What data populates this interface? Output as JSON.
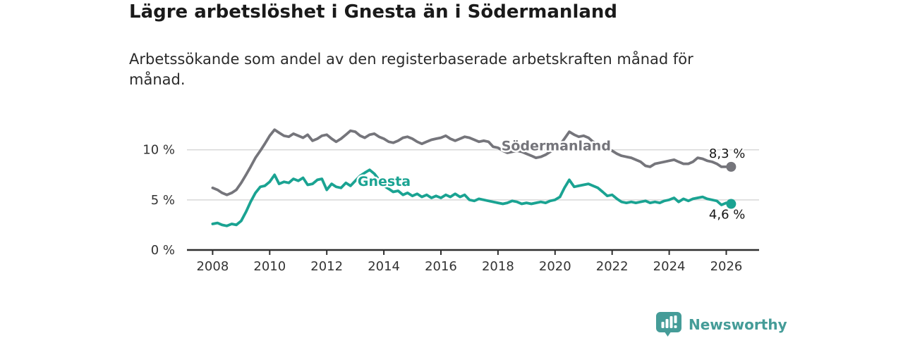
{
  "header": {
    "title": "Lägre arbetslöshet i Gnesta än i Södermanland",
    "subtitle": "Arbetssökande som andel av den registerbaserade arbetskraften månad för månad.",
    "subtitle_lines": [
      "Arbetssökande som andel av den registerbaserade arbetskraften månad för",
      "månad."
    ]
  },
  "footer": {
    "brand_name": "Newsworthy",
    "logo_icon": "bar-chart-speech-bubble-icon"
  },
  "colors": {
    "gnesta": "#1aa392",
    "sodermanland": "#75757b",
    "grid": "#d8d8d8",
    "axis": "#2e2e2e",
    "tick_text": "#333333",
    "end_label_text": "#141414",
    "brand": "#459c98",
    "background": "#ffffff"
  },
  "chart_data": {
    "type": "line",
    "title": "Lägre arbetslöshet i Gnesta än i Södermanland",
    "xlabel": "",
    "ylabel": "",
    "x_unit": "year (monthly series)",
    "grid": "horizontal",
    "legend_position": "inline-series-labels",
    "xlim": [
      2007.1,
      2027.15
    ],
    "ylim": [
      0,
      13
    ],
    "x_ticks": [
      {
        "value": 2008,
        "label": "2008"
      },
      {
        "value": 2010,
        "label": "2010"
      },
      {
        "value": 2012,
        "label": "2012"
      },
      {
        "value": 2014,
        "label": "2014"
      },
      {
        "value": 2016,
        "label": "2016"
      },
      {
        "value": 2018,
        "label": "2018"
      },
      {
        "value": 2020,
        "label": "2020"
      },
      {
        "value": 2022,
        "label": "2022"
      },
      {
        "value": 2024,
        "label": "2024"
      },
      {
        "value": 2026,
        "label": "2026"
      }
    ],
    "y_ticks": [
      {
        "value": 0,
        "label": "0 %"
      },
      {
        "value": 5,
        "label": "5 %"
      },
      {
        "value": 10,
        "label": "10 %"
      }
    ],
    "grid_values": [
      5,
      10
    ],
    "series": [
      {
        "name": "Södermanland",
        "color": "#75757b",
        "end_label": "8,3 %",
        "end_value": 8.3,
        "end_label_position": "above",
        "label_anchor": {
          "x": 2018.12,
          "y": 9.95
        },
        "points": [
          [
            2008.0,
            6.2
          ],
          [
            2008.17,
            6.0
          ],
          [
            2008.33,
            5.7
          ],
          [
            2008.5,
            5.5
          ],
          [
            2008.67,
            5.7
          ],
          [
            2008.83,
            6.0
          ],
          [
            2009.0,
            6.7
          ],
          [
            2009.17,
            7.5
          ],
          [
            2009.33,
            8.3
          ],
          [
            2009.5,
            9.2
          ],
          [
            2009.67,
            9.9
          ],
          [
            2009.83,
            10.6
          ],
          [
            2010.0,
            11.4
          ],
          [
            2010.17,
            12.0
          ],
          [
            2010.33,
            11.7
          ],
          [
            2010.5,
            11.4
          ],
          [
            2010.67,
            11.3
          ],
          [
            2010.83,
            11.6
          ],
          [
            2011.0,
            11.4
          ],
          [
            2011.17,
            11.2
          ],
          [
            2011.33,
            11.5
          ],
          [
            2011.5,
            10.9
          ],
          [
            2011.67,
            11.1
          ],
          [
            2011.83,
            11.4
          ],
          [
            2012.0,
            11.5
          ],
          [
            2012.17,
            11.1
          ],
          [
            2012.33,
            10.8
          ],
          [
            2012.5,
            11.1
          ],
          [
            2012.67,
            11.5
          ],
          [
            2012.83,
            11.9
          ],
          [
            2013.0,
            11.8
          ],
          [
            2013.17,
            11.4
          ],
          [
            2013.33,
            11.2
          ],
          [
            2013.5,
            11.5
          ],
          [
            2013.67,
            11.6
          ],
          [
            2013.83,
            11.3
          ],
          [
            2014.0,
            11.1
          ],
          [
            2014.17,
            10.8
          ],
          [
            2014.33,
            10.7
          ],
          [
            2014.5,
            10.9
          ],
          [
            2014.67,
            11.2
          ],
          [
            2014.83,
            11.3
          ],
          [
            2015.0,
            11.1
          ],
          [
            2015.17,
            10.8
          ],
          [
            2015.33,
            10.6
          ],
          [
            2015.5,
            10.8
          ],
          [
            2015.67,
            11.0
          ],
          [
            2015.83,
            11.1
          ],
          [
            2016.0,
            11.2
          ],
          [
            2016.17,
            11.4
          ],
          [
            2016.33,
            11.1
          ],
          [
            2016.5,
            10.9
          ],
          [
            2016.67,
            11.1
          ],
          [
            2016.83,
            11.3
          ],
          [
            2017.0,
            11.2
          ],
          [
            2017.17,
            11.0
          ],
          [
            2017.33,
            10.8
          ],
          [
            2017.5,
            10.9
          ],
          [
            2017.67,
            10.8
          ],
          [
            2017.83,
            10.3
          ],
          [
            2018.0,
            10.2
          ],
          [
            2018.17,
            9.9
          ],
          [
            2018.33,
            9.7
          ],
          [
            2018.5,
            9.8
          ],
          [
            2018.67,
            9.9
          ],
          [
            2018.83,
            9.8
          ],
          [
            2019.0,
            9.6
          ],
          [
            2019.17,
            9.4
          ],
          [
            2019.33,
            9.2
          ],
          [
            2019.5,
            9.3
          ],
          [
            2019.67,
            9.5
          ],
          [
            2019.83,
            9.8
          ],
          [
            2020.0,
            10.1
          ],
          [
            2020.17,
            10.5
          ],
          [
            2020.33,
            11.1
          ],
          [
            2020.5,
            11.8
          ],
          [
            2020.67,
            11.5
          ],
          [
            2020.83,
            11.3
          ],
          [
            2021.0,
            11.4
          ],
          [
            2021.17,
            11.2
          ],
          [
            2021.33,
            10.8
          ],
          [
            2021.5,
            10.6
          ],
          [
            2021.67,
            10.3
          ],
          [
            2021.83,
            10.1
          ],
          [
            2022.0,
            9.9
          ],
          [
            2022.17,
            9.6
          ],
          [
            2022.33,
            9.4
          ],
          [
            2022.5,
            9.3
          ],
          [
            2022.67,
            9.2
          ],
          [
            2022.83,
            9.0
          ],
          [
            2023.0,
            8.8
          ],
          [
            2023.17,
            8.4
          ],
          [
            2023.33,
            8.3
          ],
          [
            2023.5,
            8.6
          ],
          [
            2023.67,
            8.7
          ],
          [
            2023.83,
            8.8
          ],
          [
            2024.0,
            8.9
          ],
          [
            2024.17,
            9.0
          ],
          [
            2024.33,
            8.8
          ],
          [
            2024.5,
            8.6
          ],
          [
            2024.67,
            8.6
          ],
          [
            2024.83,
            8.8
          ],
          [
            2025.0,
            9.2
          ],
          [
            2025.17,
            9.1
          ],
          [
            2025.33,
            8.9
          ],
          [
            2025.5,
            8.8
          ],
          [
            2025.67,
            8.6
          ],
          [
            2025.83,
            8.3
          ],
          [
            2026.0,
            8.3
          ],
          [
            2026.17,
            8.3
          ]
        ]
      },
      {
        "name": "Gnesta",
        "color": "#1aa392",
        "end_label": "4,6 %",
        "end_value": 4.6,
        "end_label_position": "below",
        "label_anchor": {
          "x": 2013.08,
          "y": 6.4
        },
        "points": [
          [
            2008.0,
            2.6
          ],
          [
            2008.17,
            2.7
          ],
          [
            2008.33,
            2.5
          ],
          [
            2008.5,
            2.4
          ],
          [
            2008.67,
            2.6
          ],
          [
            2008.83,
            2.5
          ],
          [
            2009.0,
            2.9
          ],
          [
            2009.17,
            3.8
          ],
          [
            2009.33,
            4.8
          ],
          [
            2009.5,
            5.7
          ],
          [
            2009.67,
            6.3
          ],
          [
            2009.83,
            6.4
          ],
          [
            2010.0,
            6.8
          ],
          [
            2010.17,
            7.5
          ],
          [
            2010.33,
            6.6
          ],
          [
            2010.5,
            6.8
          ],
          [
            2010.67,
            6.7
          ],
          [
            2010.83,
            7.1
          ],
          [
            2011.0,
            6.9
          ],
          [
            2011.17,
            7.2
          ],
          [
            2011.33,
            6.5
          ],
          [
            2011.5,
            6.6
          ],
          [
            2011.67,
            7.0
          ],
          [
            2011.83,
            7.1
          ],
          [
            2012.0,
            6.0
          ],
          [
            2012.17,
            6.6
          ],
          [
            2012.33,
            6.3
          ],
          [
            2012.5,
            6.2
          ],
          [
            2012.67,
            6.7
          ],
          [
            2012.83,
            6.4
          ],
          [
            2013.0,
            6.9
          ],
          [
            2013.17,
            7.4
          ],
          [
            2013.33,
            7.7
          ],
          [
            2013.5,
            8.0
          ],
          [
            2013.67,
            7.6
          ],
          [
            2013.83,
            7.0
          ],
          [
            2014.0,
            6.4
          ],
          [
            2014.17,
            6.1
          ],
          [
            2014.33,
            5.8
          ],
          [
            2014.5,
            5.9
          ],
          [
            2014.67,
            5.5
          ],
          [
            2014.83,
            5.7
          ],
          [
            2015.0,
            5.4
          ],
          [
            2015.17,
            5.6
          ],
          [
            2015.33,
            5.3
          ],
          [
            2015.5,
            5.5
          ],
          [
            2015.67,
            5.2
          ],
          [
            2015.83,
            5.4
          ],
          [
            2016.0,
            5.2
          ],
          [
            2016.17,
            5.5
          ],
          [
            2016.33,
            5.3
          ],
          [
            2016.5,
            5.6
          ],
          [
            2016.67,
            5.3
          ],
          [
            2016.83,
            5.5
          ],
          [
            2017.0,
            5.0
          ],
          [
            2017.17,
            4.9
          ],
          [
            2017.33,
            5.1
          ],
          [
            2017.5,
            5.0
          ],
          [
            2017.67,
            4.9
          ],
          [
            2017.83,
            4.8
          ],
          [
            2018.0,
            4.7
          ],
          [
            2018.17,
            4.6
          ],
          [
            2018.33,
            4.7
          ],
          [
            2018.5,
            4.9
          ],
          [
            2018.67,
            4.8
          ],
          [
            2018.83,
            4.6
          ],
          [
            2019.0,
            4.7
          ],
          [
            2019.17,
            4.6
          ],
          [
            2019.33,
            4.7
          ],
          [
            2019.5,
            4.8
          ],
          [
            2019.67,
            4.7
          ],
          [
            2019.83,
            4.9
          ],
          [
            2020.0,
            5.0
          ],
          [
            2020.17,
            5.3
          ],
          [
            2020.33,
            6.2
          ],
          [
            2020.5,
            7.0
          ],
          [
            2020.67,
            6.3
          ],
          [
            2020.83,
            6.4
          ],
          [
            2021.0,
            6.5
          ],
          [
            2021.17,
            6.6
          ],
          [
            2021.33,
            6.4
          ],
          [
            2021.5,
            6.2
          ],
          [
            2021.67,
            5.8
          ],
          [
            2021.83,
            5.4
          ],
          [
            2022.0,
            5.5
          ],
          [
            2022.17,
            5.1
          ],
          [
            2022.33,
            4.8
          ],
          [
            2022.5,
            4.7
          ],
          [
            2022.67,
            4.8
          ],
          [
            2022.83,
            4.7
          ],
          [
            2023.0,
            4.8
          ],
          [
            2023.17,
            4.9
          ],
          [
            2023.33,
            4.7
          ],
          [
            2023.5,
            4.8
          ],
          [
            2023.67,
            4.7
          ],
          [
            2023.83,
            4.9
          ],
          [
            2024.0,
            5.0
          ],
          [
            2024.17,
            5.2
          ],
          [
            2024.33,
            4.8
          ],
          [
            2024.5,
            5.1
          ],
          [
            2024.67,
            4.9
          ],
          [
            2024.83,
            5.1
          ],
          [
            2025.0,
            5.2
          ],
          [
            2025.17,
            5.3
          ],
          [
            2025.33,
            5.1
          ],
          [
            2025.5,
            5.0
          ],
          [
            2025.67,
            4.9
          ],
          [
            2025.83,
            4.5
          ],
          [
            2026.0,
            4.7
          ],
          [
            2026.17,
            4.6
          ]
        ]
      }
    ]
  }
}
